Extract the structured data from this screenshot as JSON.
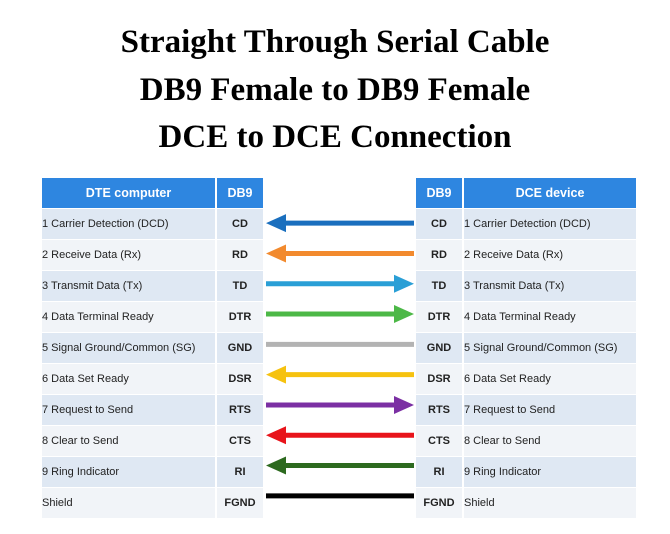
{
  "title": {
    "line1": "Straight Through Serial Cable",
    "line2": "DB9 Female to DB9 Female",
    "line3": "DCE to DCE Connection"
  },
  "left_table": {
    "header_desc": "DTE computer",
    "header_code": "DB9"
  },
  "right_table": {
    "header_code": "DB9",
    "header_desc": "DCE device"
  },
  "rows": [
    {
      "desc": "1 Carrier Detection (DCD)",
      "code": "CD",
      "color": "#1a6fbe",
      "direction": "left"
    },
    {
      "desc": "2 Receive Data (Rx)",
      "code": "RD",
      "color": "#f28a2e",
      "direction": "left"
    },
    {
      "desc": "3 Transmit Data (Tx)",
      "code": "TD",
      "color": "#2a9fd6",
      "direction": "right"
    },
    {
      "desc": "4 Data Terminal Ready",
      "code": "DTR",
      "color": "#4cb847",
      "direction": "right"
    },
    {
      "desc": "5 Signal Ground/Common  (SG)",
      "code": "GND",
      "color": "#b3b3b3",
      "direction": "none"
    },
    {
      "desc": "6 Data Set Ready",
      "code": "DSR",
      "color": "#f6c20f",
      "direction": "left"
    },
    {
      "desc": "7 Request to Send",
      "code": "RTS",
      "color": "#7b2fa3",
      "direction": "right"
    },
    {
      "desc": "8 Clear to Send",
      "code": "CTS",
      "color": "#e8141b",
      "direction": "left"
    },
    {
      "desc": "9 Ring Indicator",
      "code": "RI",
      "color": "#2d6a1f",
      "direction": "left"
    },
    {
      "desc": "Shield",
      "code": "FGND",
      "color": "#000000",
      "direction": "none"
    }
  ]
}
